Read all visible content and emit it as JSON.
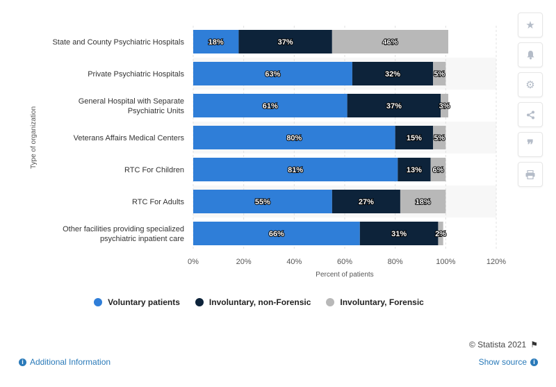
{
  "chart_data": {
    "type": "bar",
    "orientation": "horizontal",
    "stacked": true,
    "categories": [
      [
        "State and County Psychiatric Hospitals"
      ],
      [
        "Private Psychiatric Hospitals"
      ],
      [
        "General Hospital with Separate",
        "Psychiatric Units"
      ],
      [
        "Veterans Affairs Medical Centers"
      ],
      [
        "RTC For Children"
      ],
      [
        "RTC For Adults"
      ],
      [
        "Other facilities providing specialized",
        "psychiatric inpatient care"
      ]
    ],
    "series": [
      {
        "name": "Voluntary patients",
        "color": "#2f7ed8",
        "values": [
          18,
          63,
          61,
          80,
          81,
          55,
          66
        ]
      },
      {
        "name": "Involuntary, non-Forensic",
        "color": "#0d233a",
        "values": [
          37,
          32,
          37,
          15,
          13,
          27,
          31
        ]
      },
      {
        "name": "Involuntary, Forensic",
        "color": "#b8b8b8",
        "values": [
          46,
          5,
          3,
          5,
          6,
          18,
          2
        ]
      }
    ],
    "data_labels": [
      [
        "18%",
        "63%",
        "61%",
        "80%",
        "81%",
        "55%",
        "66%"
      ],
      [
        "37%",
        "32%",
        "37%",
        "15%",
        "13%",
        "27%",
        "31%"
      ],
      [
        "46%",
        "5%",
        "3%",
        "5%",
        "6%",
        "18%",
        "2%"
      ]
    ],
    "xlabel": "Percent of patients",
    "ylabel": "Type of organization",
    "xlim": [
      0,
      120
    ],
    "xticks": [
      "0%",
      "20%",
      "40%",
      "60%",
      "80%",
      "100%",
      "120%"
    ],
    "grid": true,
    "legend_position": "bottom"
  },
  "legend": [
    {
      "label": "Voluntary patients",
      "color": "#2f7ed8"
    },
    {
      "label": "Involuntary, non-Forensic",
      "color": "#0d233a"
    },
    {
      "label": "Involuntary, Forensic",
      "color": "#b8b8b8"
    }
  ],
  "sidebar": {
    "icons": [
      "star-icon",
      "bell-icon",
      "gear-icon",
      "share-icon",
      "quote-icon",
      "print-icon"
    ]
  },
  "footer": {
    "credit": "© Statista 2021",
    "additional_info": "Additional Information",
    "show_source": "Show source"
  }
}
